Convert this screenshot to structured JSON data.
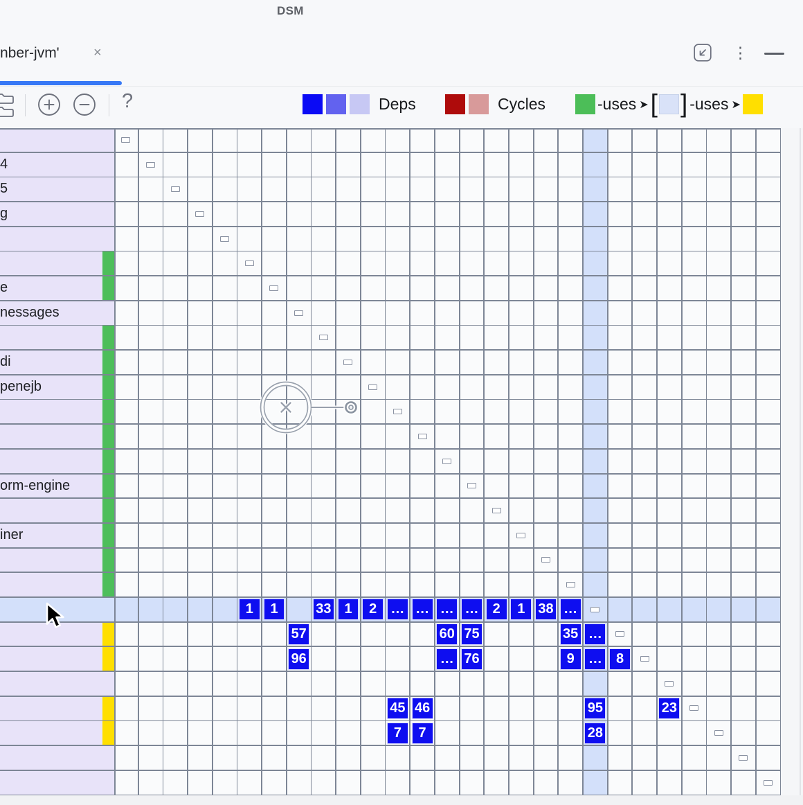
{
  "window": {
    "title": "DSM"
  },
  "tab_bar": {
    "tab_title": "nber-jvm'",
    "close_icon": "×",
    "controls": {
      "more_icon": "⋮"
    }
  },
  "toolbar": {
    "help_label": "?"
  },
  "legend": {
    "deps_label": "Deps",
    "deps_colors": [
      "#0A0AF5",
      "#6262EF",
      "#C7C8F4"
    ],
    "cycles_label": "Cycles",
    "cycles_colors": [
      "#AE0B0B",
      "#D89A9A"
    ],
    "uses_left_label": "-uses",
    "uses_right_label": "-uses",
    "arrow_icon": "➤",
    "bracket_open": "[",
    "bracket_close": "]",
    "uses_source_color": "#4CBE58",
    "uses_selected_color": "#D9E2F8",
    "uses_target_color": "#FFDF00"
  },
  "matrix": {
    "size": 27,
    "selected_index": 20,
    "row_labels": {
      "2": "4",
      "3": "5",
      "4": "g",
      "7": "e",
      "8": "nessages",
      "10": "di",
      "11": "penejb",
      "15": "orm-engine",
      "17": "iner"
    },
    "green_bar_rows": [
      6,
      7,
      9,
      10,
      11,
      12,
      13,
      14,
      15,
      16,
      17,
      18,
      19
    ],
    "yellow_bar_rows": [
      21,
      22,
      24,
      25
    ],
    "dependency_cells": [
      {
        "row": 20,
        "col": 6,
        "value": "1"
      },
      {
        "row": 20,
        "col": 7,
        "value": "1"
      },
      {
        "row": 20,
        "col": 9,
        "value": "33"
      },
      {
        "row": 20,
        "col": 10,
        "value": "1"
      },
      {
        "row": 20,
        "col": 11,
        "value": "2"
      },
      {
        "row": 20,
        "col": 12,
        "value": "…"
      },
      {
        "row": 20,
        "col": 13,
        "value": "…"
      },
      {
        "row": 20,
        "col": 14,
        "value": "…"
      },
      {
        "row": 20,
        "col": 15,
        "value": "…"
      },
      {
        "row": 20,
        "col": 16,
        "value": "2"
      },
      {
        "row": 20,
        "col": 17,
        "value": "1"
      },
      {
        "row": 20,
        "col": 18,
        "value": "38"
      },
      {
        "row": 20,
        "col": 19,
        "value": "…"
      },
      {
        "row": 21,
        "col": 8,
        "value": "57"
      },
      {
        "row": 21,
        "col": 14,
        "value": "60"
      },
      {
        "row": 21,
        "col": 15,
        "value": "75"
      },
      {
        "row": 21,
        "col": 19,
        "value": "35"
      },
      {
        "row": 21,
        "col": 20,
        "value": "…"
      },
      {
        "row": 22,
        "col": 8,
        "value": "96"
      },
      {
        "row": 22,
        "col": 14,
        "value": "…"
      },
      {
        "row": 22,
        "col": 15,
        "value": "76"
      },
      {
        "row": 22,
        "col": 19,
        "value": "9"
      },
      {
        "row": 22,
        "col": 20,
        "value": "…"
      },
      {
        "row": 22,
        "col": 21,
        "value": "8"
      },
      {
        "row": 24,
        "col": 12,
        "value": "45"
      },
      {
        "row": 24,
        "col": 13,
        "value": "46"
      },
      {
        "row": 24,
        "col": 20,
        "value": "95"
      },
      {
        "row": 24,
        "col": 23,
        "value": "23"
      },
      {
        "row": 25,
        "col": 12,
        "value": "7"
      },
      {
        "row": 25,
        "col": 13,
        "value": "7"
      },
      {
        "row": 25,
        "col": 20,
        "value": "28"
      }
    ],
    "colors": {
      "dep_cell": "#0E0EF0",
      "highlight": "#D3E0FA",
      "label_bg": "#E8E3F9",
      "green_bar": "#4DBE5A",
      "yellow_bar": "#FFDF00",
      "gridline": "#7D8696",
      "grid_bg": "#FAFBFC"
    }
  }
}
